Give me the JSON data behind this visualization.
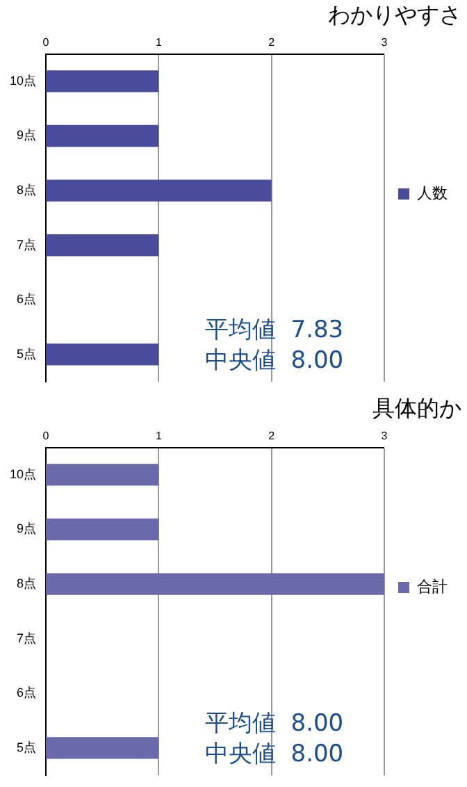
{
  "chart_data": [
    {
      "type": "bar",
      "orientation": "horizontal",
      "title": "わかりやすさ",
      "categories": [
        "10点",
        "9点",
        "8点",
        "7点",
        "6点",
        "5点"
      ],
      "series": [
        {
          "name": "人数",
          "color": "#4b4b9b",
          "values": [
            1,
            1,
            2,
            1,
            0,
            1
          ]
        }
      ],
      "xlim": [
        0,
        3
      ],
      "xticks": [
        0,
        1,
        2,
        3
      ],
      "grid": "x",
      "legend": "right",
      "annotations": [
        "平均値  7.83",
        "中央値  8.00"
      ]
    },
    {
      "type": "bar",
      "orientation": "horizontal",
      "title": "具体的か",
      "categories": [
        "10点",
        "9点",
        "8点",
        "7点",
        "6点",
        "5点"
      ],
      "series": [
        {
          "name": "合計",
          "color": "#6a6aaa",
          "values": [
            1,
            1,
            3,
            0,
            0,
            1
          ]
        }
      ],
      "xlim": [
        0,
        3
      ],
      "xticks": [
        0,
        1,
        2,
        3
      ],
      "grid": "x",
      "legend": "right",
      "annotations": [
        "平均値  8.00",
        "中央値  8.00"
      ]
    }
  ]
}
